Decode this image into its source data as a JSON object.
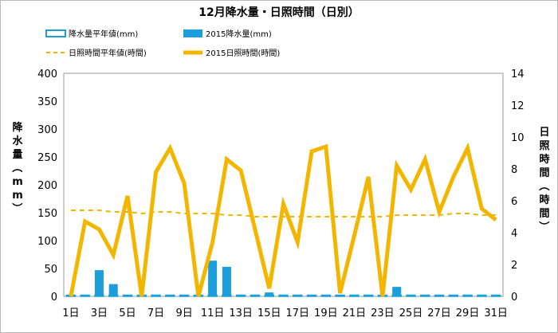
{
  "chart_data": {
    "type": "bar+line",
    "title": "12月降水量・日照時間（日別）",
    "categories": [
      "1",
      "2",
      "3",
      "4",
      "5",
      "6",
      "7",
      "8",
      "9",
      "10",
      "11",
      "12",
      "13",
      "14",
      "15",
      "16",
      "17",
      "18",
      "19",
      "20",
      "21",
      "22",
      "23",
      "24",
      "25",
      "26",
      "27",
      "28",
      "29",
      "30",
      "31"
    ],
    "x_tick_labels": [
      "1日",
      "3日",
      "5日",
      "7日",
      "9日",
      "11日",
      "13日",
      "15日",
      "17日",
      "19日",
      "21日",
      "23日",
      "25日",
      "27日",
      "29日",
      "31日"
    ],
    "ylabel_left": "降水量（mm）",
    "ylabel_right": "日照時間（時間）",
    "ylim_left": [
      0,
      400
    ],
    "ylim_right": [
      0,
      14
    ],
    "yticks_left": [
      0,
      50,
      100,
      150,
      200,
      250,
      300,
      350,
      400
    ],
    "yticks_right": [
      0,
      2,
      4,
      6,
      8,
      10,
      12,
      14
    ],
    "grid": false,
    "legend_placement": "top",
    "series": [
      {
        "name": "降水量平年値(mm)",
        "kind": "bar-outline",
        "axis": "left",
        "color": "#1a9fdc",
        "values": [
          2,
          2,
          2,
          2,
          2,
          2,
          2,
          2,
          2,
          2,
          2,
          2,
          2,
          2,
          2,
          2,
          2,
          2,
          2,
          2,
          2,
          2,
          2,
          2,
          2,
          2,
          2,
          2,
          2,
          2,
          2
        ]
      },
      {
        "name": "2015降水量(mm)",
        "kind": "bar",
        "axis": "left",
        "color": "#1a9fdc",
        "values": [
          0,
          0,
          47,
          22,
          0,
          0,
          0,
          0,
          0,
          0,
          64,
          53,
          0,
          0,
          7,
          0,
          2,
          2,
          0,
          0,
          0,
          2,
          0,
          17,
          0,
          0,
          0,
          0,
          0,
          0,
          0
        ]
      },
      {
        "name": "日照時間平年値(時間)",
        "kind": "dashed-line",
        "axis": "right",
        "color": "#f2b600",
        "values": [
          5.4,
          5.4,
          5.4,
          5.3,
          5.3,
          5.2,
          5.3,
          5.3,
          5.2,
          5.2,
          5.2,
          5.1,
          5.1,
          5.0,
          5.0,
          5.0,
          5.0,
          5.0,
          5.0,
          5.0,
          5.0,
          5.0,
          5.0,
          5.1,
          5.1,
          5.1,
          5.1,
          5.2,
          5.2,
          5.1,
          5.1
        ]
      },
      {
        "name": "2015日照時間(時間)",
        "kind": "line",
        "axis": "right",
        "color": "#f2b600",
        "values": [
          0,
          4.7,
          4.2,
          2.6,
          6.3,
          0,
          7.8,
          9.3,
          7.1,
          0,
          3.4,
          8.6,
          7.9,
          4.2,
          0.5,
          5.8,
          3.4,
          9.1,
          9.4,
          0.2,
          3.8,
          7.5,
          0,
          8.2,
          6.7,
          8.6,
          5.3,
          7.5,
          9.3,
          5.5,
          4.8
        ]
      }
    ]
  }
}
